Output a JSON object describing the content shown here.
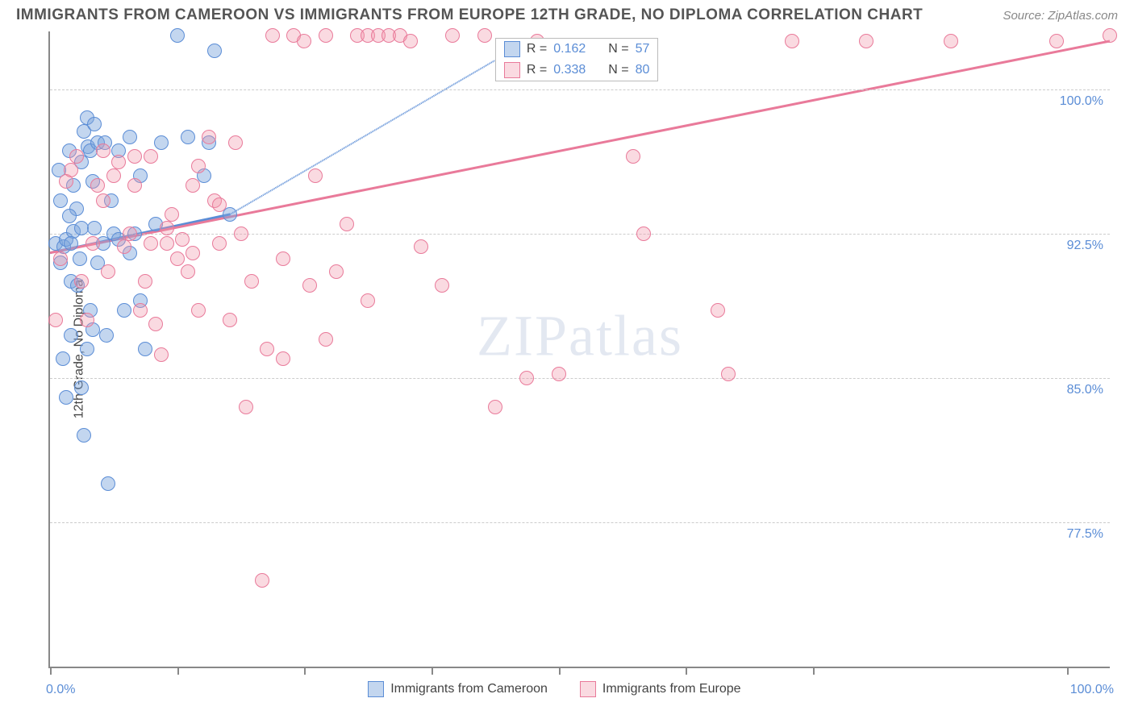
{
  "header": {
    "title": "IMMIGRANTS FROM CAMEROON VS IMMIGRANTS FROM EUROPE 12TH GRADE, NO DIPLOMA CORRELATION CHART",
    "source": "Source: ZipAtlas.com"
  },
  "chart": {
    "type": "scatter",
    "y_axis_title": "12th Grade, No Diploma",
    "watermark": "ZIPatlas",
    "x_range": [
      0,
      100
    ],
    "y_range": [
      70,
      103
    ],
    "x_ticks": [
      0,
      12,
      24,
      36,
      48,
      60,
      72,
      96
    ],
    "x_labels": {
      "min": "0.0%",
      "max": "100.0%",
      "min_pos": 0,
      "max_pos": 100
    },
    "y_gridlines": [
      77.5,
      85.0,
      92.5,
      100.0
    ],
    "y_labels": [
      "77.5%",
      "85.0%",
      "92.5%",
      "100.0%"
    ],
    "colors": {
      "blue_fill": "rgba(121, 163, 220, 0.45)",
      "blue_stroke": "#5b8dd6",
      "pink_fill": "rgba(240, 150, 170, 0.35)",
      "pink_stroke": "#e97a9a",
      "grid": "#cccccc",
      "axis": "#888888",
      "text_tick": "#5b8dd6"
    },
    "series": [
      {
        "name": "Immigrants from Cameroon",
        "color_key": "blue",
        "r_value": "0.162",
        "n_value": "57",
        "trend": {
          "x1": 0,
          "y1": 91.5,
          "x2": 17,
          "y2": 93.5,
          "dash_x2": 42,
          "dash_y2": 101.5
        },
        "points": [
          [
            0.5,
            92
          ],
          [
            1,
            91
          ],
          [
            1.3,
            91.8
          ],
          [
            1.5,
            92.2
          ],
          [
            2,
            90
          ],
          [
            2.2,
            92.6
          ],
          [
            2.5,
            93.8
          ],
          [
            2.8,
            91.2
          ],
          [
            3,
            96.2
          ],
          [
            3.2,
            97.8
          ],
          [
            3.5,
            98.5
          ],
          [
            3.6,
            97.0
          ],
          [
            3.8,
            96.8
          ],
          [
            4.2,
            98.2
          ],
          [
            4.5,
            97.2
          ],
          [
            2.6,
            89.8
          ],
          [
            1.8,
            93.4
          ],
          [
            3,
            92.8
          ],
          [
            3.5,
            86.5
          ],
          [
            4,
            87.5
          ],
          [
            1.5,
            84
          ],
          [
            1.2,
            86
          ],
          [
            3.2,
            82
          ],
          [
            5.5,
            79.5
          ],
          [
            5,
            92
          ],
          [
            6,
            92.5
          ],
          [
            5.2,
            97.2
          ],
          [
            6.5,
            96.8
          ],
          [
            7,
            88.5
          ],
          [
            7.5,
            97.5
          ],
          [
            8,
            92.5
          ],
          [
            8.5,
            89
          ],
          [
            9,
            86.5
          ],
          [
            10,
            93
          ],
          [
            10.5,
            97.2
          ],
          [
            12,
            102.8
          ],
          [
            13,
            97.5
          ],
          [
            14.5,
            95.5
          ],
          [
            15,
            97.2
          ],
          [
            15.5,
            102
          ],
          [
            17,
            93.5
          ],
          [
            4.2,
            92.8
          ],
          [
            2.2,
            95
          ],
          [
            1,
            94.2
          ],
          [
            0.8,
            95.8
          ],
          [
            1.8,
            96.8
          ],
          [
            2.0,
            87.2
          ],
          [
            4.5,
            91
          ],
          [
            5.8,
            94.2
          ],
          [
            6.5,
            92.2
          ],
          [
            7.5,
            91.5
          ],
          [
            8.5,
            95.5
          ],
          [
            3.8,
            88.5
          ],
          [
            5.3,
            87.2
          ],
          [
            3.0,
            84.5
          ],
          [
            2.0,
            92.0
          ],
          [
            4.0,
            95.2
          ]
        ]
      },
      {
        "name": "Immigrants from Europe",
        "color_key": "pink",
        "r_value": "0.338",
        "n_value": "80",
        "trend": {
          "x1": 0,
          "y1": 91.5,
          "x2": 100,
          "y2": 102.5
        },
        "points": [
          [
            0.5,
            88
          ],
          [
            1,
            91.2
          ],
          [
            1.5,
            95.2
          ],
          [
            2,
            95.8
          ],
          [
            2.5,
            96.5
          ],
          [
            3,
            90
          ],
          [
            3.5,
            88
          ],
          [
            4,
            92
          ],
          [
            4.5,
            95
          ],
          [
            5,
            96.8
          ],
          [
            5.5,
            90.5
          ],
          [
            6,
            95.5
          ],
          [
            6.5,
            96.2
          ],
          [
            7,
            91.8
          ],
          [
            7.5,
            92.5
          ],
          [
            8,
            96.5
          ],
          [
            8.5,
            88.5
          ],
          [
            9,
            90
          ],
          [
            9.5,
            92
          ],
          [
            10,
            87.8
          ],
          [
            10.5,
            86.2
          ],
          [
            11,
            92.8
          ],
          [
            11.5,
            93.5
          ],
          [
            12,
            91.2
          ],
          [
            12.5,
            92.2
          ],
          [
            13,
            90.5
          ],
          [
            13.5,
            95
          ],
          [
            14,
            88.5
          ],
          [
            15,
            97.5
          ],
          [
            15.5,
            94.2
          ],
          [
            16,
            92
          ],
          [
            17,
            88
          ],
          [
            17.5,
            97.2
          ],
          [
            18,
            92.5
          ],
          [
            18.5,
            83.5
          ],
          [
            20,
            74.5
          ],
          [
            20.5,
            86.5
          ],
          [
            21,
            102.8
          ],
          [
            22,
            91.2
          ],
          [
            23,
            102.8
          ],
          [
            24,
            102.5
          ],
          [
            24.5,
            89.8
          ],
          [
            25,
            95.5
          ],
          [
            26,
            102.8
          ],
          [
            27,
            90.5
          ],
          [
            28,
            93
          ],
          [
            29,
            102.8
          ],
          [
            30,
            102.8
          ],
          [
            31,
            102.8
          ],
          [
            32,
            102.8
          ],
          [
            33,
            102.8
          ],
          [
            34,
            102.5
          ],
          [
            35,
            91.8
          ],
          [
            37,
            89.8
          ],
          [
            38,
            102.8
          ],
          [
            41,
            102.8
          ],
          [
            42,
            83.5
          ],
          [
            45,
            85
          ],
          [
            46,
            102.5
          ],
          [
            48,
            85.2
          ],
          [
            55,
            96.5
          ],
          [
            56,
            92.5
          ],
          [
            63,
            88.5
          ],
          [
            64,
            85.2
          ],
          [
            70,
            102.5
          ],
          [
            77,
            102.5
          ],
          [
            85,
            102.5
          ],
          [
            95,
            102.5
          ],
          [
            100,
            102.8
          ],
          [
            8,
            95
          ],
          [
            11,
            92
          ],
          [
            14,
            96
          ],
          [
            16,
            94
          ],
          [
            19,
            90
          ],
          [
            22,
            86
          ],
          [
            26,
            87
          ],
          [
            30,
            89
          ],
          [
            5,
            94.2
          ],
          [
            9.5,
            96.5
          ],
          [
            13.5,
            91.5
          ]
        ]
      }
    ],
    "legend_top": [
      {
        "swatch": "blue",
        "r_label": "R =",
        "r_val": "0.162",
        "n_label": "N =",
        "n_val": "57"
      },
      {
        "swatch": "pink",
        "r_label": "R =",
        "r_val": "0.338",
        "n_label": "N =",
        "80": "80",
        "n_val": "80"
      }
    ],
    "legend_bottom": [
      {
        "swatch": "blue",
        "label": "Immigrants from Cameroon"
      },
      {
        "swatch": "pink",
        "label": "Immigrants from Europe"
      }
    ]
  }
}
